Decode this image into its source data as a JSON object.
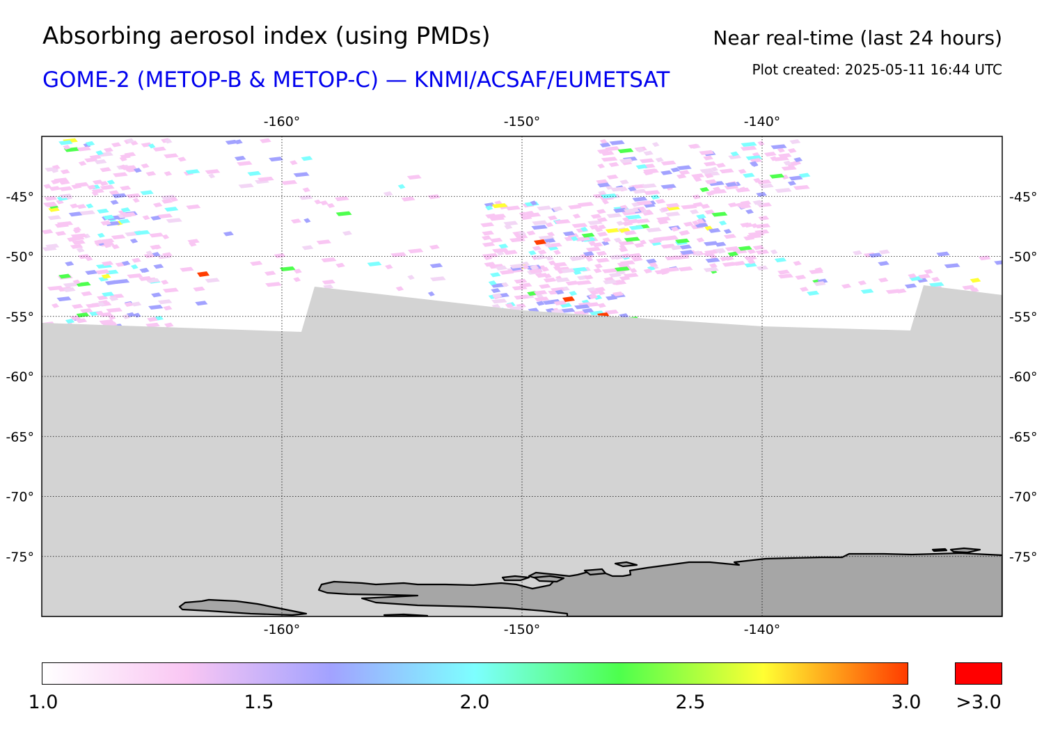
{
  "header": {
    "title": "Absorbing aerosol index (using PMDs)",
    "subtitle": "GOME-2 (METOP-B & METOP-C) — KNMI/ACSAF/EUMETSAT",
    "mode": "Near real-time (last 24 hours)",
    "created": "Plot created: 2025-05-11 16:44 UTC"
  },
  "colors": {
    "subtitle": "#0000ee",
    "no_data": "#d3d3d3",
    "land": "#a6a6a6",
    "coastline": "#000000",
    "over_max": "#ff0000",
    "colormap": [
      "#ffffff",
      "#f9c6f3",
      "#a2a2ff",
      "#7dffff",
      "#4dff4d",
      "#ffff33",
      "#ff3c00"
    ]
  },
  "map": {
    "lon_range": [
      -170,
      -130
    ],
    "lat_range": [
      -80,
      -40
    ],
    "lon_ticks": [
      {
        "value": -160,
        "label": "-160°"
      },
      {
        "value": -150,
        "label": "-150°"
      },
      {
        "value": -140,
        "label": "-140°"
      }
    ],
    "lat_ticks": [
      {
        "value": -45,
        "label": "-45°"
      },
      {
        "value": -50,
        "label": "-50°"
      },
      {
        "value": -55,
        "label": "-55°"
      },
      {
        "value": -60,
        "label": "-60°"
      },
      {
        "value": -65,
        "label": "-65°"
      },
      {
        "value": -70,
        "label": "-70°"
      },
      {
        "value": -75,
        "label": "-75°"
      }
    ],
    "gridlines": true
  },
  "colorbar": {
    "min": 1.0,
    "max": 3.0,
    "labels": [
      "1.0",
      "1.5",
      "2.0",
      "2.5",
      "3.0"
    ],
    "over_label": ">3.0"
  }
}
